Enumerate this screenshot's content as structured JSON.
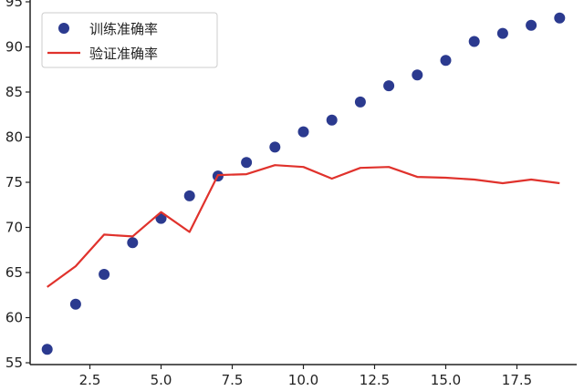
{
  "chart_data": {
    "type": "line",
    "xlim": [
      0.4,
      19.6
    ],
    "ylim": [
      54.8,
      95.2
    ],
    "x_ticks": [
      2.5,
      5.0,
      7.5,
      10.0,
      12.5,
      15.0,
      17.5
    ],
    "x_tick_labels": [
      "2.5",
      "5.0",
      "7.5",
      "10.0",
      "12.5",
      "15.0",
      "17.5"
    ],
    "y_ticks": [
      55,
      60,
      65,
      70,
      75,
      80,
      85,
      90,
      95
    ],
    "y_tick_labels": [
      "55",
      "60",
      "65",
      "70",
      "75",
      "80",
      "85",
      "90",
      "95"
    ],
    "grid": false,
    "legend_position": "upper-left",
    "series": [
      {
        "name": "训练准确率",
        "style": "scatter",
        "color": "#2b3a8f",
        "x": [
          1,
          2,
          3,
          4,
          5,
          6,
          7,
          8,
          9,
          10,
          11,
          12,
          13,
          14,
          15,
          16,
          17,
          18,
          19
        ],
        "y": [
          56.5,
          61.5,
          64.8,
          68.3,
          71.0,
          73.5,
          75.7,
          77.2,
          78.9,
          80.6,
          81.9,
          83.9,
          85.7,
          86.9,
          88.5,
          90.6,
          91.5,
          92.4,
          93.2
        ]
      },
      {
        "name": "验证准确率",
        "style": "line",
        "color": "#e0322c",
        "x": [
          1,
          2,
          3,
          4,
          5,
          6,
          7,
          8,
          9,
          10,
          11,
          12,
          13,
          14,
          15,
          16,
          17,
          18,
          19
        ],
        "y": [
          63.4,
          65.7,
          69.2,
          69.0,
          71.7,
          69.5,
          75.8,
          75.9,
          76.9,
          76.7,
          75.4,
          76.6,
          76.7,
          75.6,
          75.5,
          75.3,
          74.9,
          75.3,
          74.9
        ]
      }
    ]
  }
}
